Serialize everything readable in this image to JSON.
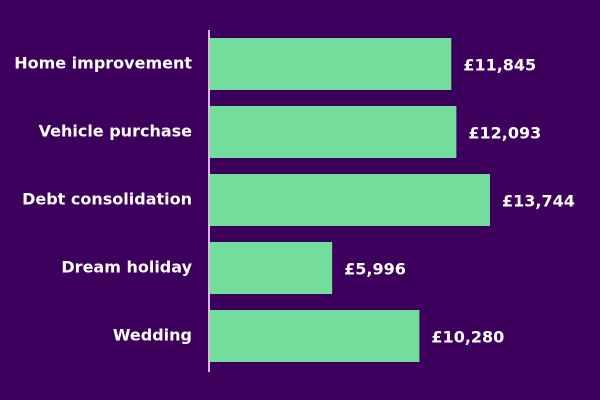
{
  "chart_data": {
    "type": "bar",
    "orientation": "horizontal",
    "categories": [
      "Home improvement",
      "Vehicle purchase",
      "Debt consolidation",
      "Dream holiday",
      "Wedding"
    ],
    "values": [
      11845,
      12093,
      13744,
      5996,
      10280
    ],
    "value_labels": [
      "£11,845",
      "£12,093",
      "£13,744",
      "£5,996",
      "£10,280"
    ],
    "color": "#73dd9c"
  }
}
